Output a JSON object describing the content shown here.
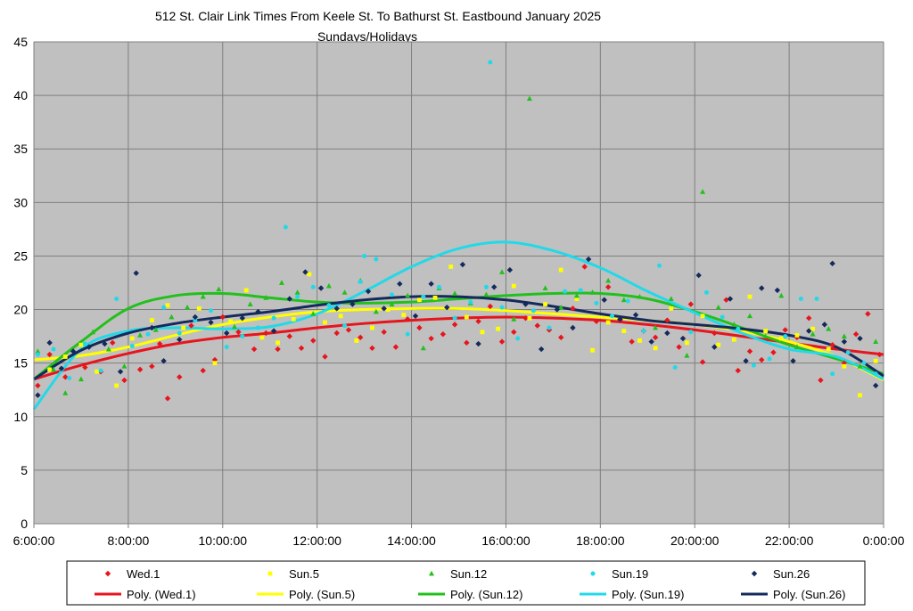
{
  "chart_data": {
    "type": "scatter",
    "title": "512 St. Clair Link Times From Keele St. To Bathurst St. Eastbound January 2025",
    "subtitle": "Sundays/Holidays",
    "xlabel": "",
    "ylabel": "",
    "xlim": [
      "6:00:00",
      "0:00:00"
    ],
    "ylim": [
      0,
      45
    ],
    "x_ticks": [
      "6:00:00",
      "8:00:00",
      "10:00:00",
      "12:00:00",
      "14:00:00",
      "16:00:00",
      "18:00:00",
      "20:00:00",
      "22:00:00",
      "0:00:00"
    ],
    "y_ticks": [
      "0",
      "5",
      "10",
      "15",
      "20",
      "25",
      "30",
      "35",
      "40",
      "45"
    ],
    "grid": true,
    "legend_placement": "bottom",
    "plot_background": "#c0c0c0",
    "series": [
      {
        "name": "Wed.1",
        "marker": "diamond",
        "color": "#e8141c",
        "x": [
          "6:05",
          "6:20",
          "6:40",
          "7:05",
          "7:25",
          "7:40",
          "7:55",
          "8:15",
          "8:30",
          "8:40",
          "8:50",
          "9:05",
          "9:20",
          "9:35",
          "9:50",
          "10:00",
          "10:20",
          "10:40",
          "10:55",
          "11:10",
          "11:25",
          "11:40",
          "11:55",
          "12:10",
          "12:25",
          "12:40",
          "12:55",
          "13:10",
          "13:25",
          "13:40",
          "13:55",
          "14:10",
          "14:25",
          "14:40",
          "14:55",
          "15:10",
          "15:25",
          "15:40",
          "15:55",
          "16:10",
          "16:25",
          "16:40",
          "16:55",
          "17:10",
          "17:25",
          "17:40",
          "17:55",
          "18:10",
          "18:25",
          "18:40",
          "18:55",
          "19:10",
          "19:25",
          "19:40",
          "19:55",
          "20:10",
          "20:25",
          "20:40",
          "20:55",
          "21:10",
          "21:25",
          "21:40",
          "21:55",
          "22:10",
          "22:25",
          "22:40",
          "22:55",
          "23:10",
          "23:25",
          "23:40",
          "23:55"
        ],
        "y": [
          12.9,
          15.8,
          13.7,
          14.6,
          14.2,
          16.9,
          13.4,
          14.4,
          14.7,
          16.8,
          11.7,
          13.7,
          18.5,
          14.3,
          15.3,
          19.3,
          17.9,
          16.3,
          17.8,
          16.3,
          17.5,
          16.4,
          17.1,
          15.6,
          17.8,
          18.1,
          17.4,
          16.4,
          17.9,
          16.5,
          19.1,
          18.3,
          17.3,
          17.7,
          18.6,
          16.9,
          18.9,
          20.3,
          17.0,
          17.9,
          19.2,
          18.5,
          18.1,
          17.4,
          20.1,
          24.0,
          18.9,
          22.1,
          19.0,
          17.0,
          18.0,
          17.4,
          19.0,
          16.5,
          20.5,
          15.1,
          17.8,
          20.9,
          14.3,
          16.1,
          15.3,
          16.0,
          18.1,
          17.4,
          19.2,
          13.4,
          16.7,
          15.0,
          17.7,
          19.6,
          15.8
        ]
      },
      {
        "name": "Sun.5",
        "marker": "square",
        "color": "#ffff00",
        "x": [
          "6:20",
          "6:40",
          "7:00",
          "7:20",
          "7:45",
          "8:05",
          "8:30",
          "8:50",
          "9:10",
          "9:30",
          "9:50",
          "10:10",
          "10:30",
          "10:50",
          "11:10",
          "11:30",
          "11:50",
          "12:10",
          "12:30",
          "12:50",
          "13:10",
          "13:30",
          "13:50",
          "14:10",
          "14:30",
          "14:50",
          "15:10",
          "15:30",
          "15:50",
          "16:10",
          "16:30",
          "16:50",
          "17:10",
          "17:30",
          "17:50",
          "18:10",
          "18:30",
          "18:50",
          "19:10",
          "19:30",
          "19:50",
          "20:10",
          "20:30",
          "20:50",
          "21:10",
          "21:30",
          "21:50",
          "22:10",
          "22:30",
          "22:50",
          "23:10",
          "23:30",
          "23:50"
        ],
        "y": [
          14.4,
          15.6,
          16.7,
          14.2,
          12.9,
          17.3,
          19.0,
          20.4,
          18.3,
          20.1,
          15.0,
          18.9,
          21.8,
          17.4,
          16.9,
          19.1,
          23.3,
          18.8,
          19.4,
          17.1,
          18.3,
          20.0,
          19.5,
          20.9,
          21.1,
          24.0,
          19.3,
          17.9,
          18.2,
          22.2,
          19.2,
          20.5,
          23.7,
          21.0,
          16.2,
          18.8,
          18.0,
          17.1,
          16.4,
          20.1,
          16.9,
          19.4,
          16.7,
          17.2,
          21.2,
          18.0,
          17.3,
          17.6,
          18.2,
          16.3,
          14.7,
          12.0,
          15.2
        ]
      },
      {
        "name": "Sun.12",
        "marker": "triangle",
        "color": "#22c01c",
        "x": [
          "6:05",
          "6:25",
          "6:40",
          "7:00",
          "7:15",
          "7:35",
          "7:55",
          "8:15",
          "8:35",
          "8:55",
          "9:15",
          "9:35",
          "9:55",
          "10:15",
          "10:35",
          "10:55",
          "11:15",
          "11:35",
          "11:55",
          "12:15",
          "12:35",
          "12:55",
          "13:15",
          "13:35",
          "13:55",
          "14:15",
          "14:35",
          "14:55",
          "15:15",
          "15:35",
          "15:55",
          "16:10",
          "16:30",
          "16:50",
          "17:10",
          "17:30",
          "17:50",
          "18:10",
          "18:30",
          "18:50",
          "19:10",
          "19:30",
          "19:50",
          "20:10",
          "20:30",
          "20:50",
          "21:10",
          "21:30",
          "21:50",
          "22:10",
          "22:30",
          "22:50",
          "23:10",
          "23:30",
          "23:50"
        ],
        "y": [
          16.1,
          14.4,
          12.2,
          13.5,
          17.9,
          16.3,
          14.7,
          17.6,
          18.1,
          19.3,
          20.2,
          21.2,
          21.9,
          18.4,
          20.5,
          21.1,
          22.5,
          21.6,
          19.6,
          22.2,
          21.6,
          22.7,
          19.8,
          20.5,
          21.3,
          16.4,
          22.0,
          21.5,
          20.6,
          21.4,
          23.5,
          19.1,
          39.7,
          22.0,
          20.2,
          21.3,
          21.6,
          22.7,
          20.9,
          21.2,
          18.3,
          21.0,
          15.7,
          31.0,
          20.2,
          18.6,
          19.4,
          17.5,
          21.3,
          16.5,
          17.7,
          18.2,
          17.5,
          14.7,
          17.0
        ]
      },
      {
        "name": "Sun.19",
        "marker": "dot",
        "color": "#21d9e8",
        "x": [
          "6:05",
          "6:25",
          "6:45",
          "7:05",
          "7:25",
          "7:45",
          "8:05",
          "8:25",
          "8:45",
          "9:05",
          "9:25",
          "9:45",
          "10:05",
          "10:25",
          "10:45",
          "11:05",
          "11:20",
          "11:35",
          "11:55",
          "12:15",
          "12:35",
          "12:55",
          "13:00",
          "13:15",
          "13:35",
          "13:55",
          "14:15",
          "14:35",
          "14:55",
          "15:15",
          "15:35",
          "15:40",
          "15:55",
          "16:15",
          "16:35",
          "16:55",
          "17:15",
          "17:35",
          "17:55",
          "18:15",
          "18:35",
          "18:55",
          "19:15",
          "19:35",
          "19:55",
          "20:15",
          "20:35",
          "20:55",
          "21:15",
          "21:35",
          "21:55",
          "22:15",
          "22:35",
          "22:55",
          "23:15",
          "23:35",
          "23:50"
        ],
        "y": [
          15.8,
          16.3,
          13.6,
          16.8,
          14.3,
          21.0,
          16.6,
          17.7,
          20.2,
          17.8,
          19.0,
          19.9,
          16.5,
          17.5,
          18.3,
          19.2,
          27.7,
          21.2,
          22.1,
          20.4,
          18.5,
          22.6,
          25.0,
          24.7,
          21.4,
          17.7,
          21.2,
          22.1,
          19.2,
          20.7,
          22.1,
          43.1,
          20.2,
          17.3,
          19.9,
          18.3,
          21.7,
          21.8,
          20.6,
          19.4,
          20.8,
          18.0,
          24.1,
          14.6,
          17.9,
          21.6,
          19.3,
          18.2,
          14.8,
          15.4,
          17.5,
          21.0,
          21.0,
          14.0,
          16.0,
          15.0,
          14.0
        ]
      },
      {
        "name": "Sun.26",
        "marker": "diamond",
        "color": "#152a5c",
        "x": [
          "6:05",
          "6:20",
          "6:35",
          "6:50",
          "7:10",
          "7:30",
          "7:50",
          "8:10",
          "8:30",
          "8:45",
          "9:05",
          "9:25",
          "9:45",
          "10:05",
          "10:25",
          "10:45",
          "11:05",
          "11:25",
          "11:45",
          "12:05",
          "12:25",
          "12:45",
          "13:05",
          "13:25",
          "13:45",
          "14:05",
          "14:25",
          "14:45",
          "15:05",
          "15:25",
          "15:45",
          "16:05",
          "16:25",
          "16:45",
          "17:05",
          "17:25",
          "17:45",
          "18:05",
          "18:25",
          "18:45",
          "19:05",
          "19:25",
          "19:45",
          "20:05",
          "20:25",
          "20:45",
          "21:05",
          "21:25",
          "21:45",
          "22:05",
          "22:25",
          "22:45",
          "22:55",
          "23:10",
          "23:30",
          "23:50"
        ],
        "y": [
          12.0,
          16.9,
          14.5,
          16.1,
          16.5,
          16.8,
          14.2,
          23.4,
          18.3,
          15.2,
          17.2,
          19.3,
          18.8,
          17.8,
          19.2,
          19.8,
          18.0,
          21.0,
          23.5,
          22.0,
          20.1,
          20.5,
          21.7,
          20.1,
          22.4,
          19.4,
          22.4,
          20.2,
          24.2,
          16.8,
          22.1,
          23.7,
          20.5,
          16.3,
          20.0,
          18.3,
          24.7,
          20.9,
          19.1,
          19.5,
          17.0,
          17.8,
          17.3,
          23.2,
          16.5,
          21.0,
          15.2,
          22.0,
          21.8,
          15.2,
          18.0,
          18.6,
          24.3,
          17.0,
          17.3,
          12.9
        ]
      }
    ],
    "trendlines": [
      {
        "name": "Poly. (Wed.1)",
        "color": "#e8141c",
        "x": [
          "6:00",
          "7:00",
          "8:00",
          "9:00",
          "10:00",
          "11:00",
          "12:00",
          "13:00",
          "14:00",
          "15:00",
          "16:00",
          "17:00",
          "18:00",
          "19:00",
          "20:00",
          "21:00",
          "22:00",
          "23:00",
          "0:00"
        ],
        "y": [
          13.5,
          14.8,
          15.9,
          16.8,
          17.4,
          17.8,
          18.3,
          18.7,
          19.0,
          19.2,
          19.3,
          19.2,
          19.0,
          18.6,
          18.1,
          17.5,
          16.9,
          16.3,
          15.8
        ]
      },
      {
        "name": "Poly. (Sun.5)",
        "color": "#ffff00",
        "x": [
          "6:00",
          "7:00",
          "8:00",
          "9:00",
          "10:00",
          "11:00",
          "12:00",
          "13:00",
          "14:00",
          "15:00",
          "16:00",
          "17:00",
          "18:00",
          "19:00",
          "20:00",
          "21:00",
          "22:00",
          "23:00",
          "0:00"
        ],
        "y": [
          15.3,
          15.7,
          16.5,
          17.6,
          18.6,
          19.3,
          19.8,
          20.0,
          20.1,
          20.1,
          19.9,
          19.6,
          19.3,
          19.0,
          18.6,
          18.0,
          17.0,
          15.6,
          13.4
        ]
      },
      {
        "name": "Poly. (Sun.12)",
        "color": "#22c01c",
        "x": [
          "6:00",
          "7:00",
          "8:00",
          "9:00",
          "10:00",
          "11:00",
          "12:00",
          "13:00",
          "14:00",
          "15:00",
          "16:00",
          "17:00",
          "18:00",
          "19:00",
          "20:00",
          "21:00",
          "22:00",
          "23:00",
          "0:00"
        ],
        "y": [
          13.5,
          17.0,
          20.1,
          21.3,
          21.5,
          21.1,
          20.7,
          20.6,
          20.7,
          21.0,
          21.3,
          21.5,
          21.5,
          21.0,
          19.8,
          18.3,
          16.7,
          15.4,
          14.0
        ]
      },
      {
        "name": "Poly. (Sun.19)",
        "color": "#21d9e8",
        "x": [
          "6:00",
          "7:00",
          "8:00",
          "9:00",
          "10:00",
          "11:00",
          "12:00",
          "13:00",
          "14:00",
          "15:00",
          "16:00",
          "17:00",
          "18:00",
          "19:00",
          "20:00",
          "21:00",
          "22:00",
          "23:00",
          "0:00"
        ],
        "y": [
          10.7,
          16.3,
          18.0,
          18.3,
          18.2,
          18.4,
          19.6,
          21.7,
          24.0,
          25.7,
          26.3,
          25.5,
          23.9,
          21.7,
          19.7,
          17.8,
          16.3,
          15.6,
          13.5
        ]
      },
      {
        "name": "Poly. (Sun.26)",
        "color": "#152a5c",
        "x": [
          "6:00",
          "7:00",
          "8:00",
          "9:00",
          "10:00",
          "11:00",
          "12:00",
          "13:00",
          "14:00",
          "15:00",
          "16:00",
          "17:00",
          "18:00",
          "19:00",
          "20:00",
          "21:00",
          "22:00",
          "23:00",
          "0:00"
        ],
        "y": [
          13.5,
          16.2,
          17.8,
          18.7,
          19.3,
          19.8,
          20.4,
          20.9,
          21.2,
          21.2,
          20.9,
          20.3,
          19.6,
          19.0,
          18.6,
          18.2,
          17.6,
          16.5,
          13.8
        ]
      }
    ]
  }
}
